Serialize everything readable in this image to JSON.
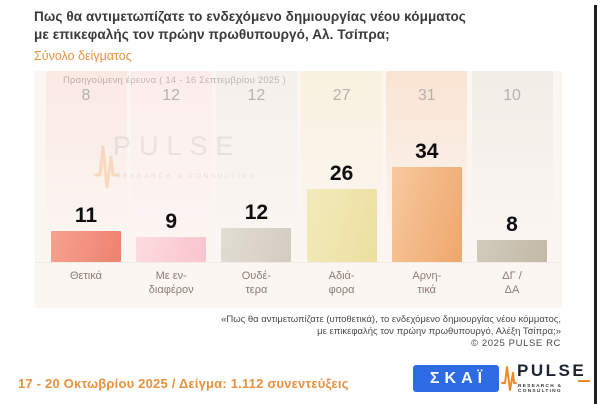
{
  "header": {
    "title_lines": [
      "Πως θα αντιμετωπίζατε το ενδεχόμενο δημιουργίας νέου κόμματος",
      "με επικεφαλής τον πρώην πρωθυπουργό, Αλ. Τσίπρα;"
    ],
    "subtitle": "Σύνολο δείγματος"
  },
  "chart_data": {
    "type": "bar",
    "title": "Πως θα αντιμετωπίζατε το ενδεχόμενο δημιουργίας νέου κόμματος με επικεφαλής τον πρώην πρωθυπουργό, Αλ. Τσίπρα;",
    "subtitle": "Σύνολο δείγματος",
    "categories": [
      "Θετικά",
      "Με ενδιαφέρον",
      "Ουδέτερα",
      "Αδιάφορα",
      "Αρνητικά",
      "ΔΓ / ΔΑ"
    ],
    "category_label_lines": [
      [
        "Θετικά"
      ],
      [
        "Με εν-",
        "διαφέρον"
      ],
      [
        "Ουδέ-",
        "τερα"
      ],
      [
        "Αδιά-",
        "φορα"
      ],
      [
        "Αρνη-",
        "τικά"
      ],
      [
        "ΔΓ /",
        "ΔΑ"
      ]
    ],
    "series": [
      {
        "name": "Προηγούμενη έρευνα ( 14 - 16 Σεπτεμβρίου 2025 )",
        "values": [
          8,
          12,
          12,
          27,
          31,
          10
        ]
      },
      {
        "name": "17 - 20 Οκτωβρίου 2025",
        "values": [
          11,
          9,
          12,
          26,
          34,
          8
        ]
      }
    ],
    "prev_survey_label": "Προηγούμενη έρευνα ( 14 - 16 Σεπτεμβρίου 2025 )",
    "xlabel": "",
    "ylabel": "",
    "ylim": [
      0,
      40
    ],
    "grid": false,
    "legend_position": "none",
    "value_labels": "current series shown bold above bars, previous series gray at top"
  },
  "bar_styles": [
    {
      "from": "#f6a28f",
      "to": "#ee8270",
      "band": "rgba(242,144,126,0.13)"
    },
    {
      "from": "#fcdce0",
      "to": "#f9c4cb",
      "band": "rgba(250,205,212,0.22)"
    },
    {
      "from": "#e2ddd4",
      "to": "#d3ccc1",
      "band": "rgba(219,214,204,0.20)"
    },
    {
      "from": "#f3ebbc",
      "to": "#ebdf9e",
      "band": "rgba(240,230,174,0.30)"
    },
    {
      "from": "#f7c99d",
      "to": "#eea76c",
      "band": "rgba(243,186,134,0.30)"
    },
    {
      "from": "#d2cbbc",
      "to": "#c2b9a6",
      "band": "rgba(203,195,178,0.20)"
    }
  ],
  "watermark": {
    "text": "PULSE",
    "subtext": "RESEARCH & CONSULTING"
  },
  "footnote": {
    "lines": [
      "«Πως θα αντιμετωπίζατε (υποθετικά), το ενδεχόμενο δημιουργίας νέου κόμματος,",
      "με επικεφαλής τον πρώην πρωθυπουργό, Αλέξη Τσίπρα;»"
    ],
    "copyright": "© 2025 PULSE RC"
  },
  "footer": {
    "survey_info": "17 - 20 Οκτωβρίου 2025  /  Δείγμα:  1.112 συνεντεύξεις",
    "skai_logo_text": "ΣΚΑΪ",
    "pulse_logo_text": "PULSE",
    "pulse_logo_subtext": "RESEARCH & CONSULTING"
  },
  "colors": {
    "accent_orange": "#e8933d",
    "footer_orange": "#e8913e",
    "skai_blue": "#2d6be4",
    "pulse_orange": "#f08a24",
    "pulse_dark": "#1b2430",
    "title_text": "#3a3a3a",
    "muted_gray": "#b5b2b0",
    "category_text": "#8a7d73",
    "panel_bg": "#fcf6f3"
  }
}
